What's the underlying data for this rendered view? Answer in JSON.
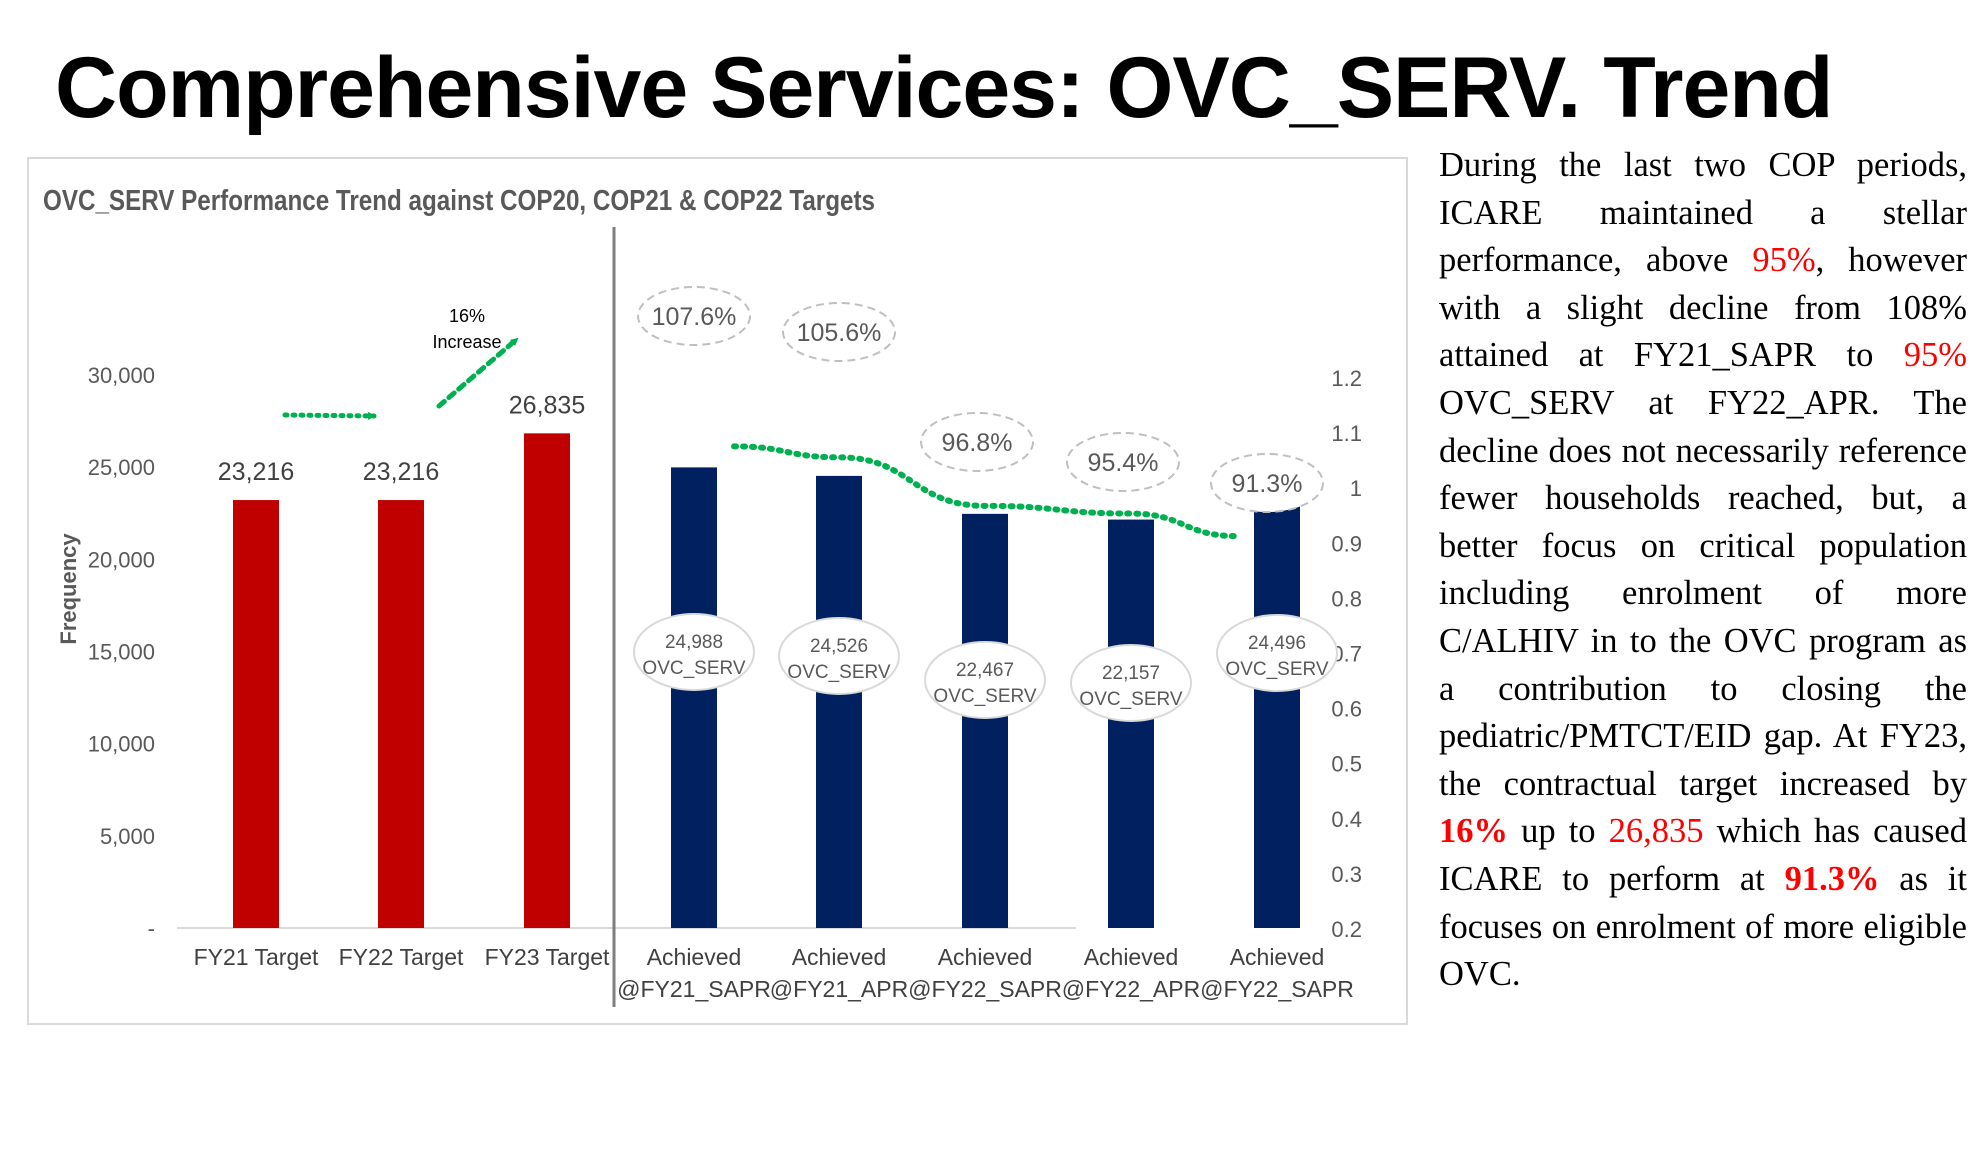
{
  "slide": {
    "title": "Comprehensive Services: OVC_SERV. Trend"
  },
  "chart_data": {
    "type": "bar",
    "title": "OVC_SERV Performance Trend against COP20, COP21 & COP22 Targets",
    "ylabel": "Frequency",
    "ylim": [
      0,
      30000
    ],
    "y_ticks": [
      "-",
      "5,000",
      "10,000",
      "15,000",
      "20,000",
      "25,000",
      "30,000"
    ],
    "y2lim": [
      0.2,
      1.2
    ],
    "y2_ticks": [
      "0.2",
      "0.3",
      "0.4",
      "0.5",
      "0.6",
      "0.7",
      "0.8",
      "0.9",
      "1",
      "1.1",
      "1.2"
    ],
    "categories": [
      [
        "FY21 Target"
      ],
      [
        "FY22 Target"
      ],
      [
        "FY23 Target"
      ],
      [
        "Achieved",
        "@FY21_SAPR"
      ],
      [
        "Achieved",
        "@FY21_APR"
      ],
      [
        "Achieved",
        "@FY22_SAPR"
      ],
      [
        "Achieved",
        "@FY22_APR"
      ],
      [
        "Achieved",
        "@FY22_SAPR"
      ]
    ],
    "targets": {
      "values": [
        23216,
        23216,
        26835
      ],
      "labels": [
        "23,216",
        "23,216",
        "26,835"
      ],
      "color": "#c00000"
    },
    "achieved": {
      "values": [
        24988,
        24526,
        22467,
        22157,
        24496
      ],
      "labels": [
        [
          "24,988",
          "OVC_SERV"
        ],
        [
          "24,526",
          "OVC_SERV"
        ],
        [
          "22,467",
          "OVC_SERV"
        ],
        [
          "22,157",
          "OVC_SERV"
        ],
        [
          "24,496",
          "OVC_SERV"
        ]
      ],
      "color": "#002060"
    },
    "performance": {
      "values": [
        1.076,
        1.056,
        0.968,
        0.954,
        0.913
      ],
      "labels": [
        "107.6%",
        "105.6%",
        "96.8%",
        "95.4%",
        "91.3%"
      ],
      "color": "#00b050"
    },
    "increase_annotation": [
      "16%",
      "Increase"
    ],
    "grid": false
  },
  "narrative": [
    {
      "text": "During the last two COP periods, ICARE maintained a stellar performance, above "
    },
    {
      "text": "95%",
      "style": "red"
    },
    {
      "text": ", however with a slight decline from 108% attained at FY21_SAPR to "
    },
    {
      "text": "95%",
      "style": "red"
    },
    {
      "text": " OVC_SERV at FY22_APR. The decline does not necessarily reference fewer households reached, but, a better focus on critical population including enrolment of more C/ALHIV in to the OVC program as a contribution to closing the pediatric/PMTCT/EID gap. At FY23, the contractual target increased by "
    },
    {
      "text": "16%",
      "style": "red-bold"
    },
    {
      "text": " up to "
    },
    {
      "text": "26,835",
      "style": "red"
    },
    {
      "text": " which has caused ICARE to perform at "
    },
    {
      "text": "91.3%",
      "style": "red-bold"
    },
    {
      "text": " as it focuses on enrolment of more eligible OVC."
    }
  ]
}
